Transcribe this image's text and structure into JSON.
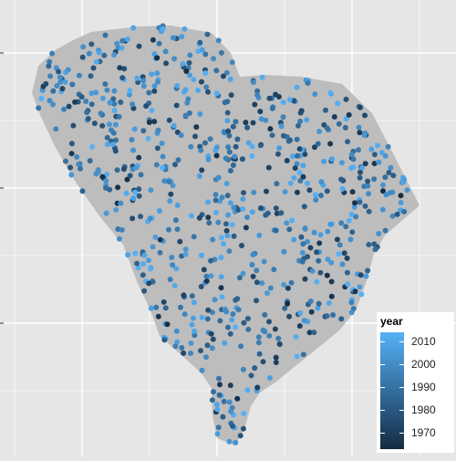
{
  "map": {
    "region_fill": "#bdbdbd",
    "panel_background": "#e6e6e6",
    "gridline_color": "#ffffff",
    "point_color_scale": {
      "low_color": "#132b43",
      "high_color": "#56b1f7",
      "min": 1963,
      "max": 2014
    },
    "point_count": 780
  },
  "legend": {
    "title": "year",
    "ticks": [
      {
        "value": 2010,
        "label": "2010"
      },
      {
        "value": 2000,
        "label": "2000"
      },
      {
        "value": 1990,
        "label": "1990"
      },
      {
        "value": 1980,
        "label": "1980"
      },
      {
        "value": 1970,
        "label": "1970"
      }
    ]
  }
}
